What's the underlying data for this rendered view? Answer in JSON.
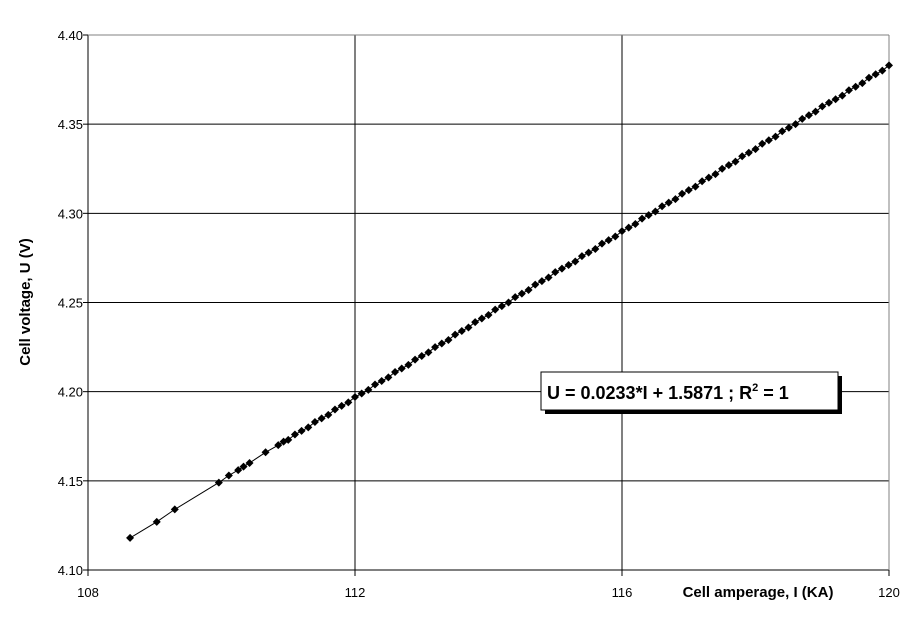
{
  "chart_data": {
    "type": "scatter",
    "title": "",
    "xlabel": "Cell amperage, I (KA)",
    "ylabel": "Cell voltage, U (V)",
    "xlim": [
      108,
      120
    ],
    "ylim": [
      4.1,
      4.4
    ],
    "x_ticks": [
      "108",
      "112",
      "116",
      "120"
    ],
    "y_ticks": [
      "4.10",
      "4.15",
      "4.20",
      "4.25",
      "4.30",
      "4.35",
      "4.40"
    ],
    "grid": true,
    "marker": "diamond",
    "color": "#000000",
    "series": [
      {
        "x": [
          108.63,
          109.03,
          109.3,
          109.96,
          110.11,
          110.25,
          110.33,
          110.42,
          110.66,
          110.85,
          110.93,
          111.0,
          111.1,
          111.2,
          111.3,
          111.4,
          111.5,
          111.6,
          111.7,
          111.8,
          111.9,
          112.0,
          112.1,
          112.2,
          112.3,
          112.4,
          112.5,
          112.6,
          112.7,
          112.8,
          112.9,
          113.0,
          113.1,
          113.2,
          113.3,
          113.4,
          113.5,
          113.6,
          113.7,
          113.8,
          113.9,
          114.0,
          114.1,
          114.2,
          114.3,
          114.4,
          114.5,
          114.6,
          114.7,
          114.8,
          114.9,
          115.0,
          115.1,
          115.2,
          115.3,
          115.4,
          115.5,
          115.6,
          115.7,
          115.8,
          115.9,
          116.0,
          116.1,
          116.2,
          116.3,
          116.4,
          116.5,
          116.6,
          116.7,
          116.8,
          116.9,
          117.0,
          117.1,
          117.2,
          117.3,
          117.4,
          117.5,
          117.6,
          117.7,
          117.8,
          117.9,
          118.0,
          118.1,
          118.2,
          118.3,
          118.4,
          118.5,
          118.6,
          118.7,
          118.8,
          118.9,
          119.0,
          119.1,
          119.2,
          119.3,
          119.4,
          119.5,
          119.6,
          119.7,
          119.8,
          119.9,
          120.0
        ],
        "y": [
          4.118,
          4.127,
          4.134,
          4.149,
          4.153,
          4.156,
          4.158,
          4.16,
          4.166,
          4.17,
          4.172,
          4.173,
          4.176,
          4.178,
          4.18,
          4.183,
          4.185,
          4.187,
          4.19,
          4.192,
          4.194,
          4.197,
          4.199,
          4.201,
          4.204,
          4.206,
          4.208,
          4.211,
          4.213,
          4.215,
          4.218,
          4.22,
          4.222,
          4.225,
          4.227,
          4.229,
          4.232,
          4.234,
          4.236,
          4.239,
          4.241,
          4.243,
          4.246,
          4.248,
          4.25,
          4.253,
          4.255,
          4.257,
          4.26,
          4.262,
          4.264,
          4.267,
          4.269,
          4.271,
          4.273,
          4.276,
          4.278,
          4.28,
          4.283,
          4.285,
          4.287,
          4.29,
          4.292,
          4.294,
          4.297,
          4.299,
          4.301,
          4.304,
          4.306,
          4.308,
          4.311,
          4.313,
          4.315,
          4.318,
          4.32,
          4.322,
          4.325,
          4.327,
          4.329,
          4.332,
          4.334,
          4.336,
          4.339,
          4.341,
          4.343,
          4.346,
          4.348,
          4.35,
          4.353,
          4.355,
          4.357,
          4.36,
          4.362,
          4.364,
          4.366,
          4.369,
          4.371,
          4.373,
          4.376,
          4.378,
          4.38,
          4.383
        ]
      }
    ],
    "trendline": {
      "type": "linear",
      "slope": 0.0233,
      "intercept": 1.5871,
      "r_squared": 1,
      "label_main": "U = 0.0233*I + 1.5871 ; R",
      "label_sup": "2",
      "label_end": " = 1"
    }
  }
}
